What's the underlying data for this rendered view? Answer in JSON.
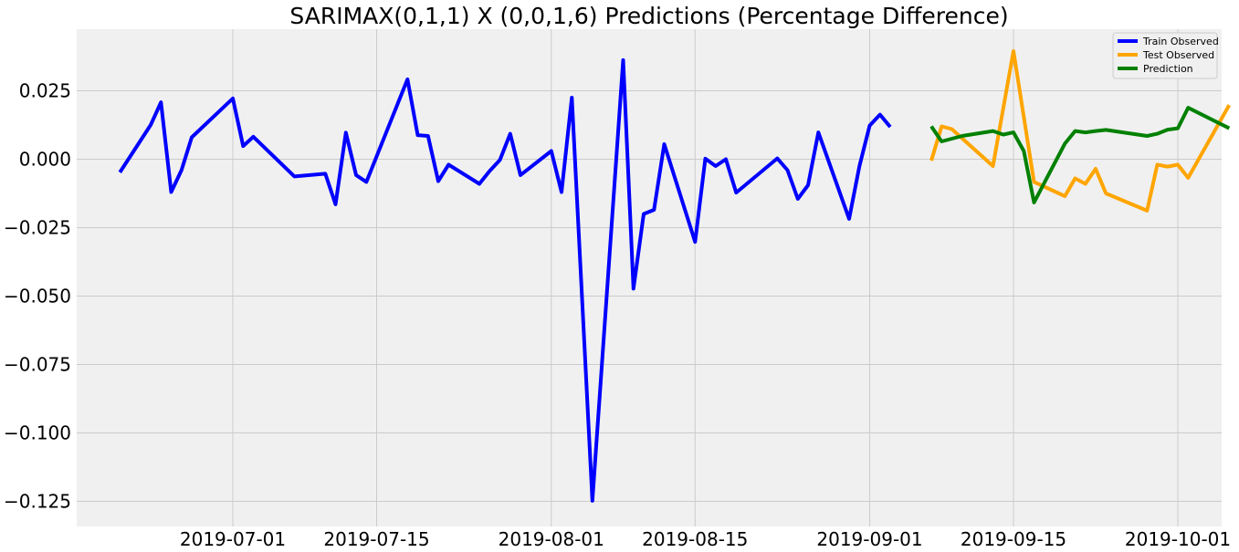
{
  "chart_data": {
    "type": "line",
    "title": "SARIMAX(0,1,1) X (0,0,1,6) Predictions (Percentage Difference)",
    "xlabel": "",
    "ylabel": "",
    "x_ticks": [
      "2019-07-01",
      "2019-07-15",
      "2019-08-01",
      "2019-08-15",
      "2019-09-01",
      "2019-09-15",
      "2019-10-01"
    ],
    "y_ticks": [
      "0.025",
      "0.000",
      "−0.025",
      "−0.050",
      "−0.075",
      "−0.100",
      "−0.125"
    ],
    "y_tick_values": [
      0.025,
      0.0,
      -0.025,
      -0.05,
      -0.075,
      -0.1,
      -0.125
    ],
    "xlim": [
      "2019-06-17",
      "2019-10-01"
    ],
    "ylim": [
      -0.134,
      0.0475
    ],
    "grid": true,
    "legend_position": "top-right",
    "series": [
      {
        "name": "Train Observed",
        "color": "#0000ff",
        "points": [
          [
            "2019-06-20",
            -0.0048
          ],
          [
            "2019-06-23",
            0.0125
          ],
          [
            "2019-06-24",
            0.0208
          ],
          [
            "2019-06-25",
            -0.012
          ],
          [
            "2019-06-26",
            -0.004
          ],
          [
            "2019-06-27",
            0.008
          ],
          [
            "2019-07-01",
            0.0222
          ],
          [
            "2019-07-02",
            0.0048
          ],
          [
            "2019-07-03",
            0.0082
          ],
          [
            "2019-07-07",
            -0.0063
          ],
          [
            "2019-07-10",
            -0.0053
          ],
          [
            "2019-07-11",
            -0.0165
          ],
          [
            "2019-07-12",
            0.0097
          ],
          [
            "2019-07-13",
            -0.0058
          ],
          [
            "2019-07-14",
            -0.0083
          ],
          [
            "2019-07-18",
            0.0292
          ],
          [
            "2019-07-19",
            0.0088
          ],
          [
            "2019-07-20",
            0.0085
          ],
          [
            "2019-07-21",
            -0.008
          ],
          [
            "2019-07-22",
            -0.002
          ],
          [
            "2019-07-25",
            -0.009
          ],
          [
            "2019-07-26",
            -0.0043
          ],
          [
            "2019-07-27",
            -0.0003
          ],
          [
            "2019-07-28",
            0.0093
          ],
          [
            "2019-07-29",
            -0.0058
          ],
          [
            "2019-08-01",
            0.003
          ],
          [
            "2019-08-02",
            -0.012
          ],
          [
            "2019-08-03",
            0.0225
          ],
          [
            "2019-08-05",
            -0.1248
          ],
          [
            "2019-08-08",
            0.0362
          ],
          [
            "2019-08-09",
            -0.0473
          ],
          [
            "2019-08-10",
            -0.02
          ],
          [
            "2019-08-11",
            -0.0185
          ],
          [
            "2019-08-12",
            0.0055
          ],
          [
            "2019-08-15",
            -0.0302
          ],
          [
            "2019-08-16",
            0.0002
          ],
          [
            "2019-08-17",
            -0.0025
          ],
          [
            "2019-08-18",
            0.0
          ],
          [
            "2019-08-19",
            -0.0122
          ],
          [
            "2019-08-23",
            0.0003
          ],
          [
            "2019-08-24",
            -0.004
          ],
          [
            "2019-08-25",
            -0.0145
          ],
          [
            "2019-08-26",
            -0.0095
          ],
          [
            "2019-08-27",
            0.0098
          ],
          [
            "2019-08-30",
            -0.0218
          ],
          [
            "2019-08-31",
            -0.0025
          ],
          [
            "2019-09-01",
            0.0123
          ],
          [
            "2019-09-02",
            0.0163
          ],
          [
            "2019-09-03",
            0.0118
          ]
        ]
      },
      {
        "name": "Test Observed",
        "color": "#ffa500",
        "points": [
          [
            "2019-09-07",
            -0.0005
          ],
          [
            "2019-09-08",
            0.012
          ],
          [
            "2019-09-09",
            0.011
          ],
          [
            "2019-09-13",
            -0.0025
          ],
          [
            "2019-09-15",
            0.0395
          ],
          [
            "2019-09-17",
            -0.0083
          ],
          [
            "2019-09-20",
            -0.0135
          ],
          [
            "2019-09-21",
            -0.007
          ],
          [
            "2019-09-22",
            -0.009
          ],
          [
            "2019-09-23",
            -0.0035
          ],
          [
            "2019-09-24",
            -0.0125
          ],
          [
            "2019-09-28",
            -0.0188
          ],
          [
            "2019-09-29",
            -0.002
          ],
          [
            "2019-09-30",
            -0.0027
          ],
          [
            "2019-10-01",
            -0.002
          ],
          [
            "2019-10-02",
            -0.0068
          ],
          [
            "2019-10-06",
            0.0198
          ]
        ]
      },
      {
        "name": "Prediction",
        "color": "#008000",
        "points": [
          [
            "2019-09-07",
            0.012
          ],
          [
            "2019-09-08",
            0.0065
          ],
          [
            "2019-09-10",
            0.0085
          ],
          [
            "2019-09-13",
            0.0103
          ],
          [
            "2019-09-14",
            0.009
          ],
          [
            "2019-09-15",
            0.0098
          ],
          [
            "2019-09-16",
            0.003
          ],
          [
            "2019-09-17",
            -0.0158
          ],
          [
            "2019-09-20",
            0.0057
          ],
          [
            "2019-09-21",
            0.0103
          ],
          [
            "2019-09-22",
            0.0098
          ],
          [
            "2019-09-23",
            0.0103
          ],
          [
            "2019-09-24",
            0.0107
          ],
          [
            "2019-09-28",
            0.0085
          ],
          [
            "2019-09-29",
            0.0093
          ],
          [
            "2019-09-30",
            0.0108
          ],
          [
            "2019-10-01",
            0.0113
          ],
          [
            "2019-10-02",
            0.0188
          ],
          [
            "2019-10-06",
            0.0113
          ]
        ]
      }
    ]
  }
}
